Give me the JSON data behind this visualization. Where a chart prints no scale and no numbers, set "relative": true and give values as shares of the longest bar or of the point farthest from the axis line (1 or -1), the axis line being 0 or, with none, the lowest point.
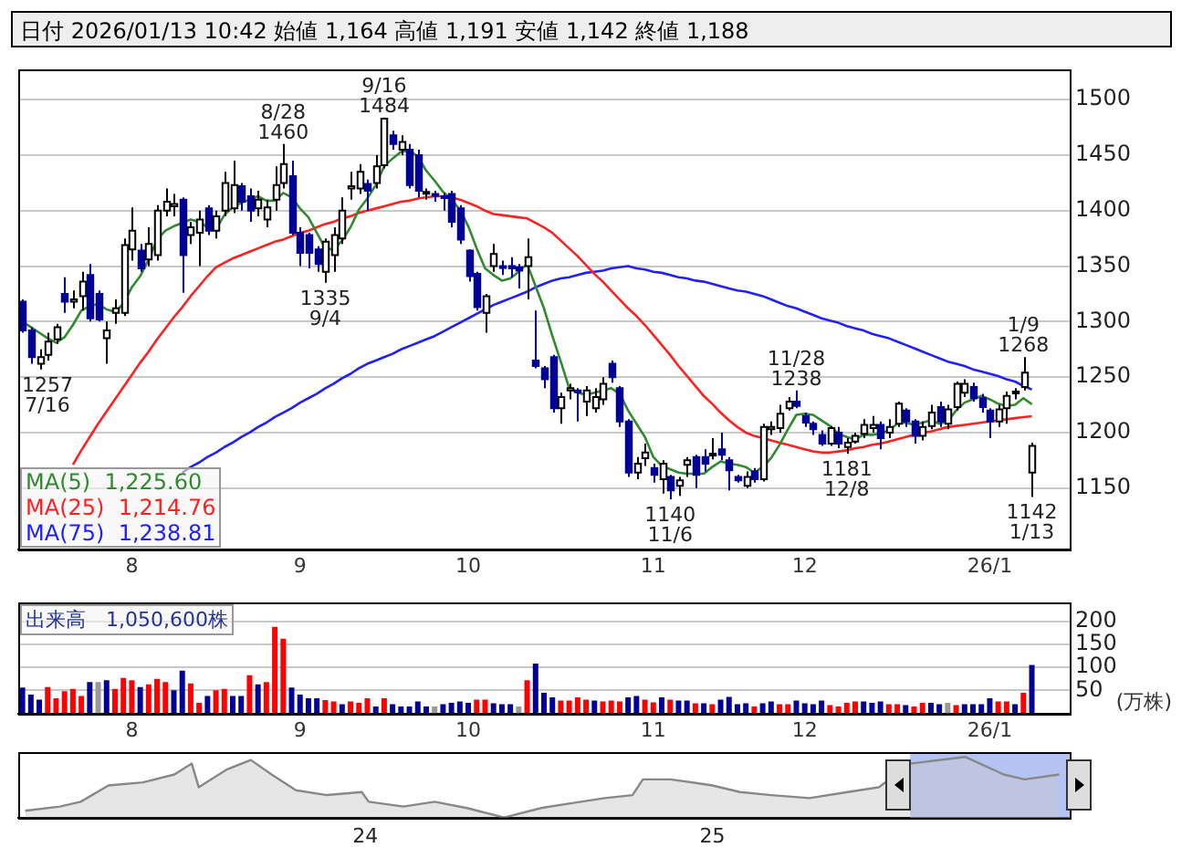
{
  "chart_data": [
    {
      "type": "candlestick",
      "title": "日付 2026/01/13 10:42 始値 1,164 高値 1,191 安値 1,142 終値 1,188",
      "categories": [
        null,
        null,
        null,
        null,
        null,
        null,
        null,
        null,
        null,
        null,
        null,
        null,
        null,
        "8",
        null,
        null,
        null,
        null,
        null,
        null,
        null,
        null,
        null,
        null,
        null,
        null,
        null,
        null,
        null,
        null,
        null,
        null,
        null,
        "9",
        null,
        null,
        null,
        null,
        null,
        null,
        null,
        null,
        null,
        null,
        null,
        null,
        null,
        null,
        null,
        null,
        null,
        null,
        null,
        "10",
        null,
        null,
        null,
        null,
        null,
        null,
        null,
        null,
        null,
        null,
        null,
        null,
        null,
        null,
        null,
        null,
        null,
        null,
        null,
        null,
        null,
        "11",
        null,
        null,
        null,
        null,
        null,
        null,
        null,
        null,
        null,
        null,
        null,
        null,
        null,
        null,
        null,
        null,
        null,
        "12",
        null,
        null,
        null,
        null,
        null,
        null,
        null,
        null,
        null,
        null,
        null,
        null,
        null,
        null,
        null,
        null,
        null,
        null,
        null,
        null,
        null,
        "26/1",
        null,
        null,
        null,
        null,
        null
      ],
      "ohlc": [
        [
          1318,
          1320,
          1290,
          1292
        ],
        [
          1292,
          1295,
          1262,
          1268
        ],
        [
          1262,
          1275,
          1257,
          1268
        ],
        [
          1270,
          1290,
          1265,
          1282
        ],
        [
          1284,
          1298,
          1280,
          1295
        ],
        [
          1325,
          1340,
          1308,
          1318
        ],
        [
          1318,
          1328,
          1312,
          1320
        ],
        [
          1323,
          1345,
          1310,
          1336
        ],
        [
          1342,
          1352,
          1300,
          1303
        ],
        [
          1325,
          1328,
          1300,
          1302
        ],
        [
          1285,
          1300,
          1262,
          1292
        ],
        [
          1308,
          1320,
          1298,
          1312
        ],
        [
          1308,
          1375,
          1305,
          1369
        ],
        [
          1365,
          1403,
          1355,
          1382
        ],
        [
          1364,
          1370,
          1345,
          1348
        ],
        [
          1356,
          1385,
          1350,
          1370
        ],
        [
          1360,
          1405,
          1355,
          1400
        ],
        [
          1400,
          1420,
          1395,
          1408
        ],
        [
          1404,
          1415,
          1395,
          1406
        ],
        [
          1410,
          1412,
          1326,
          1360
        ],
        [
          1378,
          1390,
          1370,
          1385
        ],
        [
          1380,
          1400,
          1350,
          1392
        ],
        [
          1402,
          1405,
          1378,
          1382
        ],
        [
          1382,
          1400,
          1375,
          1395
        ],
        [
          1400,
          1435,
          1395,
          1425
        ],
        [
          1402,
          1445,
          1398,
          1423
        ],
        [
          1422,
          1425,
          1400,
          1408
        ],
        [
          1413,
          1420,
          1390,
          1400
        ],
        [
          1402,
          1418,
          1395,
          1410
        ],
        [
          1392,
          1410,
          1385,
          1403
        ],
        [
          1410,
          1440,
          1400,
          1423
        ],
        [
          1425,
          1460,
          1420,
          1442
        ],
        [
          1431,
          1445,
          1378,
          1380
        ],
        [
          1380,
          1385,
          1350,
          1362
        ],
        [
          1378,
          1380,
          1348,
          1362
        ],
        [
          1365,
          1368,
          1345,
          1352
        ],
        [
          1345,
          1375,
          1335,
          1372
        ],
        [
          1360,
          1385,
          1345,
          1378
        ],
        [
          1375,
          1412,
          1370,
          1400
        ],
        [
          1420,
          1435,
          1410,
          1422
        ],
        [
          1420,
          1442,
          1415,
          1435
        ],
        [
          1424,
          1428,
          1400,
          1418
        ],
        [
          1425,
          1450,
          1420,
          1440
        ],
        [
          1441,
          1484,
          1438,
          1483
        ],
        [
          1468,
          1472,
          1455,
          1460
        ],
        [
          1455,
          1468,
          1450,
          1462
        ],
        [
          1455,
          1460,
          1420,
          1423
        ],
        [
          1450,
          1455,
          1412,
          1418
        ],
        [
          1416,
          1420,
          1410,
          1417
        ],
        [
          1415,
          1418,
          1408,
          1414
        ],
        [
          1413,
          1416,
          1400,
          1412
        ],
        [
          1415,
          1418,
          1385,
          1390
        ],
        [
          1402,
          1405,
          1370,
          1374
        ],
        [
          1364,
          1365,
          1336,
          1341
        ],
        [
          1343,
          1345,
          1310,
          1313
        ],
        [
          1308,
          1325,
          1290,
          1323
        ],
        [
          1350,
          1370,
          1345,
          1361
        ],
        [
          1350,
          1355,
          1342,
          1349
        ],
        [
          1350,
          1358,
          1340,
          1348
        ],
        [
          1349,
          1352,
          1330,
          1346
        ],
        [
          1350,
          1375,
          1320,
          1358
        ],
        [
          1265,
          1310,
          1258,
          1260
        ],
        [
          1258,
          1260,
          1240,
          1248
        ],
        [
          1268,
          1270,
          1218,
          1222
        ],
        [
          1222,
          1236,
          1208,
          1232
        ],
        [
          1238,
          1244,
          1230,
          1240
        ],
        [
          1238,
          1240,
          1210,
          1237
        ],
        [
          1228,
          1242,
          1215,
          1238
        ],
        [
          1222,
          1240,
          1218,
          1232
        ],
        [
          1230,
          1250,
          1225,
          1244
        ],
        [
          1262,
          1265,
          1245,
          1250
        ],
        [
          1240,
          1242,
          1205,
          1210
        ],
        [
          1210,
          1212,
          1160,
          1164
        ],
        [
          1164,
          1178,
          1158,
          1172
        ],
        [
          1177,
          1190,
          1170,
          1182
        ],
        [
          1168,
          1172,
          1155,
          1162
        ],
        [
          1158,
          1175,
          1145,
          1172
        ],
        [
          1160,
          1162,
          1140,
          1148
        ],
        [
          1152,
          1160,
          1143,
          1157
        ],
        [
          1171,
          1178,
          1160,
          1175
        ],
        [
          1178,
          1180,
          1150,
          1162
        ],
        [
          1178,
          1185,
          1165,
          1172
        ],
        [
          1180,
          1195,
          1176,
          1181
        ],
        [
          1185,
          1200,
          1175,
          1180
        ],
        [
          1175,
          1178,
          1148,
          1166
        ],
        [
          1160,
          1162,
          1155,
          1157
        ],
        [
          1152,
          1165,
          1150,
          1160
        ],
        [
          1165,
          1168,
          1155,
          1158
        ],
        [
          1158,
          1208,
          1156,
          1205
        ],
        [
          1203,
          1210,
          1198,
          1205
        ],
        [
          1204,
          1225,
          1200,
          1217
        ],
        [
          1222,
          1232,
          1220,
          1228
        ],
        [
          1228,
          1238,
          1222,
          1224
        ],
        [
          1215,
          1218,
          1205,
          1209
        ],
        [
          1208,
          1210,
          1198,
          1203
        ],
        [
          1198,
          1202,
          1188,
          1190
        ],
        [
          1190,
          1206,
          1188,
          1204
        ],
        [
          1200,
          1205,
          1186,
          1190
        ],
        [
          1187,
          1195,
          1181,
          1191
        ],
        [
          1192,
          1200,
          1190,
          1197
        ],
        [
          1199,
          1212,
          1195,
          1207
        ],
        [
          1204,
          1215,
          1200,
          1207
        ],
        [
          1207,
          1210,
          1185,
          1195
        ],
        [
          1200,
          1212,
          1195,
          1205
        ],
        [
          1208,
          1228,
          1205,
          1226
        ],
        [
          1220,
          1222,
          1205,
          1210
        ],
        [
          1210,
          1212,
          1190,
          1197
        ],
        [
          1197,
          1210,
          1193,
          1205
        ],
        [
          1206,
          1225,
          1203,
          1218
        ],
        [
          1223,
          1228,
          1205,
          1210
        ],
        [
          1208,
          1225,
          1203,
          1221
        ],
        [
          1223,
          1246,
          1220,
          1244
        ],
        [
          1236,
          1248,
          1232,
          1244
        ],
        [
          1241,
          1245,
          1228,
          1231
        ],
        [
          1231,
          1235,
          1218,
          1223
        ],
        [
          1220,
          1222,
          1195,
          1210
        ],
        [
          1210,
          1225,
          1205,
          1221
        ],
        [
          1222,
          1237,
          1208,
          1233
        ],
        [
          1236,
          1240,
          1230,
          1237
        ],
        [
          1241,
          1268,
          1238,
          1254
        ],
        [
          1164,
          1191,
          1142,
          1188
        ]
      ],
      "series": [
        {
          "name": "MA(5)  1,225.60",
          "type": "line",
          "color": "#2e8b2e",
          "values": [
            1300,
            1295,
            1290,
            1285,
            1281,
            1286,
            1297,
            1310,
            1314,
            1316,
            1311,
            1309,
            1316,
            1331,
            1341,
            1356,
            1374,
            1382,
            1386,
            1389,
            1392,
            1390,
            1385,
            1383,
            1396,
            1403,
            1407,
            1410,
            1413,
            1409,
            1409,
            1416,
            1412,
            1402,
            1394,
            1380,
            1366,
            1365,
            1373,
            1385,
            1401,
            1411,
            1423,
            1440,
            1447,
            1453,
            1454,
            1449,
            1436,
            1427,
            1417,
            1410,
            1401,
            1386,
            1366,
            1348,
            1342,
            1337,
            1339,
            1345,
            1352,
            1332,
            1312,
            1287,
            1264,
            1240,
            1236,
            1234,
            1236,
            1238,
            1240,
            1235,
            1220,
            1208,
            1196,
            1178,
            1170,
            1167,
            1164,
            1163,
            1163,
            1163,
            1169,
            1174,
            1172,
            1171,
            1169,
            1164,
            1169,
            1177,
            1189,
            1203,
            1216,
            1217,
            1216,
            1211,
            1206,
            1199,
            1196,
            1194,
            1198,
            1198,
            1199,
            1202,
            1208,
            1209,
            1207,
            1209,
            1211,
            1208,
            1210,
            1220,
            1227,
            1230,
            1233,
            1230,
            1226,
            1224,
            1225,
            1231,
            1225.6
          ]
        },
        {
          "name": "MA(25)  1,214.76",
          "type": "line",
          "color": "#ff2020",
          "values": [
            null,
            null,
            null,
            null,
            null,
            null,
            1171,
            1184,
            1196,
            1208,
            1219,
            1230,
            1241,
            1252,
            1263,
            1273,
            1284,
            1294,
            1304,
            1313,
            1323,
            1332,
            1341,
            1349,
            1353,
            1357,
            1360,
            1363,
            1366,
            1369,
            1372,
            1374,
            1377,
            1380,
            1382,
            1385,
            1388,
            1390,
            1393,
            1395,
            1398,
            1400,
            1402,
            1404,
            1406,
            1408,
            1409,
            1411,
            1412,
            1413,
            1413,
            1412,
            1410,
            1407,
            1404,
            1400,
            1397,
            1396,
            1395,
            1394,
            1393,
            1389,
            1385,
            1380,
            1373,
            1366,
            1359,
            1351,
            1343,
            1336,
            1328,
            1320,
            1312,
            1305,
            1297,
            1288,
            1279,
            1270,
            1260,
            1251,
            1242,
            1233,
            1226,
            1218,
            1211,
            1205,
            1200,
            1197,
            1195,
            1193,
            1191,
            1189,
            1187,
            1185,
            1183,
            1182,
            1182,
            1183,
            1184,
            1186,
            1187,
            1189,
            1190,
            1192,
            1194,
            1196,
            1198,
            1200,
            1201,
            1203,
            1205,
            1206,
            1207,
            1208,
            1209,
            1210,
            1211,
            1212,
            1213,
            1214,
            1214.76
          ]
        },
        {
          "name": "MA(75)  1,238.81",
          "type": "line",
          "color": "#2020ff",
          "values": [
            null,
            null,
            null,
            null,
            null,
            null,
            null,
            null,
            null,
            null,
            null,
            null,
            null,
            null,
            null,
            null,
            null,
            null,
            null,
            1164,
            1169,
            1173,
            1178,
            1182,
            1187,
            1191,
            1196,
            1200,
            1205,
            1209,
            1214,
            1218,
            1222,
            1227,
            1231,
            1235,
            1240,
            1244,
            1249,
            1253,
            1258,
            1262,
            1265,
            1268,
            1271,
            1275,
            1278,
            1281,
            1284,
            1287,
            1291,
            1295,
            1299,
            1303,
            1307,
            1311,
            1315,
            1318,
            1321,
            1324,
            1327,
            1331,
            1334,
            1337,
            1339,
            1340,
            1342,
            1344,
            1345,
            1346,
            1348,
            1349,
            1350,
            1348,
            1347,
            1345,
            1344,
            1342,
            1340,
            1339,
            1337,
            1336,
            1334,
            1332,
            1330,
            1328,
            1327,
            1325,
            1323,
            1320,
            1317,
            1314,
            1312,
            1309,
            1306,
            1303,
            1301,
            1299,
            1296,
            1294,
            1292,
            1289,
            1287,
            1285,
            1282,
            1279,
            1276,
            1273,
            1270,
            1267,
            1264,
            1262,
            1260,
            1257,
            1255,
            1253,
            1251,
            1248,
            1246,
            1242,
            1238.81
          ]
        }
      ],
      "ylim": [
        1095,
        1527
      ],
      "yticks": [
        1150,
        1200,
        1250,
        1300,
        1350,
        1400,
        1450,
        1500
      ],
      "grid": true,
      "legend": "bottom left",
      "marker": "none",
      "annotations": [
        {
          "text": "1257\n7/16",
          "y": 1257
        },
        {
          "text": "8/28\n1460",
          "y": 1460
        },
        {
          "text": "1335\n9/4",
          "y": 1335
        },
        {
          "text": "9/16\n1484",
          "y": 1484
        },
        {
          "text": "1140\n11/6",
          "y": 1140
        },
        {
          "text": "11/28\n1238",
          "y": 1238
        },
        {
          "text": "1181\n12/8",
          "y": 1181
        },
        {
          "text": "1/9\n1268",
          "y": 1268
        },
        {
          "text": "1142\n1/13",
          "y": 1142
        }
      ]
    },
    {
      "type": "bar",
      "title": "出来高　1,050,600株",
      "ylabel": "(万株)",
      "categories": [
        null,
        null,
        null,
        null,
        null,
        null,
        null,
        null,
        null,
        null,
        null,
        null,
        null,
        "8",
        null,
        null,
        null,
        null,
        null,
        null,
        null,
        null,
        null,
        null,
        null,
        null,
        null,
        null,
        null,
        null,
        null,
        null,
        null,
        "9",
        null,
        null,
        null,
        null,
        null,
        null,
        null,
        null,
        null,
        null,
        null,
        null,
        null,
        null,
        null,
        null,
        null,
        null,
        null,
        "10",
        null,
        null,
        null,
        null,
        null,
        null,
        null,
        null,
        null,
        null,
        null,
        null,
        null,
        null,
        null,
        null,
        null,
        null,
        null,
        null,
        null,
        "11",
        null,
        null,
        null,
        null,
        null,
        null,
        null,
        null,
        null,
        null,
        null,
        null,
        null,
        null,
        null,
        null,
        null,
        "12",
        null,
        null,
        null,
        null,
        null,
        null,
        null,
        null,
        null,
        null,
        null,
        null,
        null,
        null,
        null,
        null,
        null,
        null,
        null,
        null,
        null,
        "26/1",
        null,
        null,
        null,
        null,
        null
      ],
      "values": [
        56,
        41,
        30,
        57,
        33,
        48,
        53,
        38,
        68,
        68,
        72,
        53,
        77,
        72,
        57,
        63,
        75,
        68,
        50,
        93,
        65,
        23,
        38,
        50,
        53,
        38,
        38,
        83,
        63,
        68,
        188,
        162,
        56,
        41,
        33,
        33,
        29,
        26,
        20,
        26,
        23,
        33,
        15,
        33,
        20,
        15,
        15,
        26,
        15,
        15,
        20,
        23,
        26,
        23,
        30,
        30,
        22,
        20,
        20,
        15,
        72,
        108,
        45,
        35,
        28,
        28,
        35,
        30,
        28,
        26,
        28,
        26,
        35,
        38,
        30,
        24,
        35,
        30,
        28,
        28,
        22,
        22,
        20,
        30,
        36,
        20,
        22,
        15,
        22,
        26,
        20,
        20,
        28,
        22,
        20,
        28,
        18,
        15,
        23,
        26,
        26,
        23,
        26,
        20,
        20,
        18,
        15,
        23,
        23,
        20,
        23,
        18,
        20,
        20,
        20,
        33,
        26,
        26,
        20,
        45,
        105.06
      ],
      "colors": [
        "#000099",
        "#000099",
        "#000099",
        "#ff0000",
        "#ff0000",
        "#ff0000",
        "#ff0000",
        "#ff0000",
        "#000099",
        "#999999",
        "#000099",
        "#ff0000",
        "#ff0000",
        "#ff0000",
        "#000099",
        "#ff0000",
        "#ff0000",
        "#ff0000",
        "#000099",
        "#000099",
        "#ff0000",
        "#ff0000",
        "#000099",
        "#ff0000",
        "#ff0000",
        "#000099",
        "#000099",
        "#ff0000",
        "#000099",
        "#ff0000",
        "#ff0000",
        "#ff0000",
        "#000099",
        "#000099",
        "#000099",
        "#000099",
        "#ff0000",
        "#ff0000",
        "#000099",
        "#ff0000",
        "#ff0000",
        "#ff0000",
        "#000099",
        "#ff0000",
        "#000099",
        "#000099",
        "#000099",
        "#000099",
        "#000099",
        "#999999",
        "#000099",
        "#000099",
        "#000099",
        "#000099",
        "#ff0000",
        "#ff0000",
        "#000099",
        "#000099",
        "#000099",
        "#999999",
        "#ff0000",
        "#000099",
        "#000099",
        "#000099",
        "#ff0000",
        "#ff0000",
        "#ff0000",
        "#ff0000",
        "#000099",
        "#ff0000",
        "#ff0000",
        "#ff0000",
        "#000099",
        "#000099",
        "#ff0000",
        "#ff0000",
        "#000099",
        "#ff0000",
        "#000099",
        "#000099",
        "#ff0000",
        "#000099",
        "#ff0000",
        "#000099",
        "#000099",
        "#000099",
        "#000099",
        "#ff0000",
        "#000099",
        "#000099",
        "#ff0000",
        "#ff0000",
        "#000099",
        "#000099",
        "#000099",
        "#000099",
        "#ff0000",
        "#ff0000",
        "#ff0000",
        "#ff0000",
        "#000099",
        "#000099",
        "#000099",
        "#ff0000",
        "#ff0000",
        "#000099",
        "#ff0000",
        "#ff0000",
        "#000099",
        "#000099",
        "#999999",
        "#ff0000",
        "#000099",
        "#000099",
        "#000099",
        "#000099",
        "#ff0000",
        "#ff0000",
        "#000099",
        "#ff0000",
        "#000099"
      ],
      "ylim": [
        0,
        240
      ],
      "yticks": [
        50,
        100,
        150,
        200
      ],
      "grid": true
    },
    {
      "type": "area",
      "relative": true,
      "x": [
        2023.02,
        2023.12,
        2023.18,
        2023.26,
        2023.36,
        2023.45,
        2023.5,
        2023.52,
        2023.6,
        2023.67,
        2023.73,
        2023.8,
        2023.89,
        2023.99,
        2024.01,
        2024.11,
        2024.2,
        2024.29,
        2024.4,
        2024.51,
        2024.6,
        2024.69,
        2024.77,
        2024.8,
        2024.88,
        2025.0,
        2025.08,
        2025.17,
        2025.28,
        2025.39,
        2025.48,
        2025.57,
        2025.73,
        2025.84,
        2025.9,
        2026.0
      ],
      "series": [
        {
          "color": "#888888",
          "values": [
            0.11,
            0.18,
            0.26,
            0.53,
            0.58,
            0.71,
            0.89,
            0.5,
            0.79,
            0.95,
            0.71,
            0.45,
            0.37,
            0.42,
            0.26,
            0.18,
            0.26,
            0.16,
            0,
            0.16,
            0.24,
            0.32,
            0.37,
            0.63,
            0.63,
            0.53,
            0.42,
            0.37,
            0.32,
            0.42,
            0.5,
            0.89,
            1,
            0.71,
            0.63,
            0.71
          ]
        }
      ],
      "xlim": [
        2023.0,
        2026.03
      ],
      "xticks": [
        {
          "value": 2024,
          "label": "24"
        },
        {
          "value": 2025,
          "label": "25"
        }
      ],
      "bands": [
        {
          "axis": "x",
          "from": 2025.57,
          "to": 2026.03,
          "color": "#b4c3f4"
        }
      ]
    }
  ]
}
